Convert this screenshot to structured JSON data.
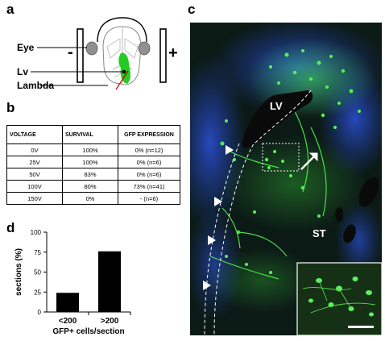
{
  "panels": {
    "a": {
      "letter": "a",
      "labels": {
        "eye": "Eye",
        "lv": "Lv",
        "lambda": "Lambda"
      },
      "electrodes": {
        "negative": "-",
        "positive": "+"
      },
      "colors": {
        "gfp": "#22cc22",
        "eye": "#909090",
        "needle": "#cc0000"
      }
    },
    "b": {
      "letter": "b",
      "headers": [
        "VOLTAGE",
        "SURVIVAL",
        "GFP EXPRESSION"
      ],
      "rows": [
        [
          "0V",
          "100%",
          "0% (n=12)"
        ],
        [
          "25V",
          "100%",
          "0% (n=6)"
        ],
        [
          "50V",
          "83%",
          "0% (n=6)"
        ],
        [
          "100V",
          "80%",
          "73% (n=41)"
        ],
        [
          "150V",
          "0%",
          "-  (n=6)"
        ]
      ]
    },
    "c": {
      "letter": "c",
      "labels": {
        "lv": "LV",
        "st": "ST"
      },
      "colors": {
        "dapi": "#1f3fae",
        "gfp": "#3fe23f"
      }
    },
    "d": {
      "letter": "d",
      "chart_data": {
        "type": "bar",
        "categories": [
          "<200",
          ">200"
        ],
        "values": [
          24,
          76
        ],
        "ylabel": "sections (%)",
        "xlabel": "GFP+ cells/section",
        "ylim": [
          0,
          100
        ],
        "yticks": [
          0,
          25,
          50,
          75,
          100
        ],
        "bar_color": "#000000"
      }
    }
  }
}
